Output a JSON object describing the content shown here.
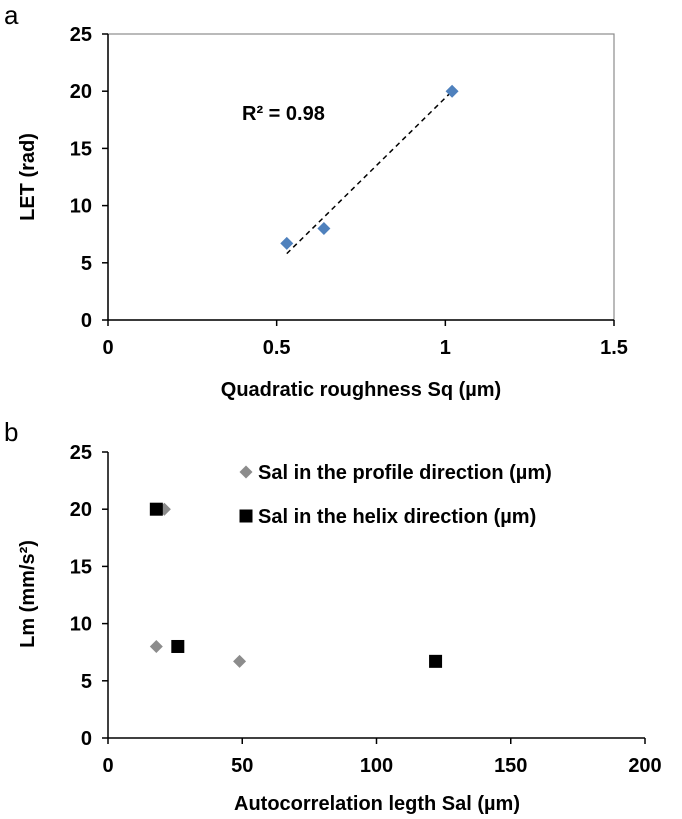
{
  "chart_data": [
    {
      "panel": "a",
      "type": "scatter",
      "xlabel": "Quadratic roughness Sq (µm)",
      "ylabel": "LET (rad)",
      "xlim": [
        0,
        1.5
      ],
      "ylim": [
        0,
        25
      ],
      "xticks": [
        0,
        0.5,
        1,
        1.5
      ],
      "xtick_labels": [
        "0",
        "0.5",
        "1",
        "1.5"
      ],
      "yticks": [
        0,
        5,
        10,
        15,
        20,
        25
      ],
      "ytick_labels": [
        "0",
        "5",
        "10",
        "15",
        "20",
        "25"
      ],
      "plot_border": true,
      "grid": false,
      "series": [
        {
          "color": "#4f81bd",
          "marker": "diamond",
          "x": [
            0.53,
            0.64,
            1.02
          ],
          "y": [
            6.7,
            8.0,
            20.0
          ]
        }
      ],
      "trendline": {
        "style": "dashed",
        "color": "#000000",
        "x": [
          0.53,
          1.02
        ],
        "y": [
          5.8,
          20.0
        ]
      },
      "annotation": "R² = 0.98"
    },
    {
      "panel": "b",
      "type": "scatter",
      "xlabel": "Autocorrelation legth Sal (µm)",
      "ylabel": "Lm (mm/s²)",
      "xlim": [
        0,
        200
      ],
      "ylim": [
        0,
        25
      ],
      "xticks": [
        0,
        50,
        100,
        150,
        200
      ],
      "xtick_labels": [
        "0",
        "50",
        "100",
        "150",
        "200"
      ],
      "yticks": [
        0,
        5,
        10,
        15,
        20,
        25
      ],
      "ytick_labels": [
        "0",
        "5",
        "10",
        "15",
        "20",
        "25"
      ],
      "plot_border": false,
      "grid": false,
      "legend_position": "top-right",
      "series": [
        {
          "name": "Sal in the profile direction (µm)",
          "color": "#8c8c8c",
          "marker": "diamond",
          "x": [
            21,
            18,
            49
          ],
          "y": [
            20.0,
            8.0,
            6.7
          ]
        },
        {
          "name": "Sal in the helix direction (µm)",
          "color": "#000000",
          "marker": "square",
          "x": [
            18,
            26,
            122
          ],
          "y": [
            20.0,
            8.0,
            6.7
          ]
        }
      ]
    }
  ]
}
